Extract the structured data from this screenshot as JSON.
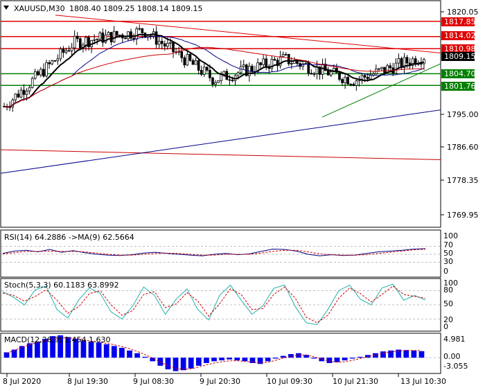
{
  "header": {
    "symbol_tf": "XAUUSD,M30",
    "ohlc": "1808.40 1809.25 1808.14 1809.15"
  },
  "price_axis": {
    "ticks": [
      "1820.05",
      "1795.00",
      "1786.60",
      "1778.35",
      "1769.95"
    ],
    "last_price_label": "1809.15",
    "level_labels": [
      {
        "value": "1817.85",
        "color": "#e00000"
      },
      {
        "value": "1814.02",
        "color": "#e00000"
      },
      {
        "value": "1810.98",
        "color": "#e00000"
      },
      {
        "value": "1804.70",
        "color": "#008000"
      },
      {
        "value": "1801.76",
        "color": "#008000"
      }
    ]
  },
  "rsi": {
    "label": "RSI(14) 64.2886  ->MA(9) 62.5664",
    "ticks": [
      "100",
      "70",
      "50",
      "30",
      "0"
    ]
  },
  "stoch": {
    "label": "Stoch(5,3,3) 60.1183 63.8992",
    "ticks": [
      "100",
      "80",
      "50",
      "20",
      "0"
    ]
  },
  "macd": {
    "label": "MACD(12,26,9) 1.454 1.630",
    "ticks": [
      "4.981",
      "0.00",
      "-3.055"
    ]
  },
  "time_axis": {
    "labels": [
      "8 Jul 2020",
      "8 Jul 19:30",
      "9 Jul 08:30",
      "9 Jul 20:30",
      "10 Jul 09:30",
      "10 Jul 21:30",
      "13 Jul 10:30"
    ]
  },
  "colors": {
    "bull": "#000000",
    "bear": "#000000",
    "resistance": "#e00000",
    "support": "#008000",
    "ma_fast": "#000000",
    "ma_mid": "#00008b",
    "ma_slow": "#cc0000",
    "rsi_line": "#000080",
    "rsi_ma": "#cc0000",
    "stoch_main": "#20b2aa",
    "stoch_signal": "#cc0000",
    "macd_hist": "#0000ee",
    "macd_signal": "#cc0000"
  },
  "chart_data": [
    {
      "type": "candlestick",
      "title": "XAUUSD,M30",
      "ylim": [
        1766.5,
        1822.5
      ],
      "x": [
        "8 Jul 2020",
        "8 Jul 19:30",
        "9 Jul 08:30",
        "9 Jul 20:30",
        "10 Jul 09:30",
        "10 Jul 21:30",
        "13 Jul 10:30"
      ],
      "last": {
        "open": 1808.4,
        "high": 1809.25,
        "low": 1808.14,
        "close": 1809.15
      },
      "close_path": [
        {
          "x": "8 Jul 2020",
          "y": 1796.5
        },
        {
          "x": "8 Jul 19:30",
          "y": 1812.5
        },
        {
          "x": "9 Jul 08:30",
          "y": 1815.5
        },
        {
          "x": "9 Jul 20:30",
          "y": 1803.2
        },
        {
          "x": "10 Jul 09:30",
          "y": 1808.4
        },
        {
          "x": "10 Jul 21:30",
          "y": 1803.0
        },
        {
          "x": "13 Jul 10:30",
          "y": 1809.15
        }
      ],
      "horizontal_levels": [
        1817.85,
        1814.02,
        1810.98,
        1804.7,
        1801.76
      ]
    },
    {
      "type": "line",
      "title": "RSI(14) 64.2886  ->MA(9) 62.5664",
      "ylim": [
        0,
        100
      ],
      "series": [
        {
          "values": [
            52,
            58,
            60,
            56,
            62,
            55,
            59,
            54,
            50,
            48,
            47,
            49,
            53,
            55,
            52,
            50,
            48,
            46,
            50,
            52,
            49,
            51,
            57,
            63,
            62,
            58,
            50,
            46,
            49,
            47,
            48,
            52,
            56,
            58,
            60,
            63,
            64
          ]
        },
        {
          "values": [
            51,
            54,
            57,
            57,
            58,
            57,
            57,
            56,
            53,
            50,
            48,
            48,
            50,
            52,
            53,
            52,
            50,
            48,
            48,
            50,
            50,
            50,
            53,
            57,
            60,
            60,
            56,
            51,
            49,
            48,
            48,
            49,
            52,
            55,
            58,
            61,
            62.6
          ]
        }
      ]
    },
    {
      "type": "line",
      "title": "Stoch(5,3,3) 60.1183 63.8992",
      "ylim": [
        0,
        100
      ],
      "series": [
        {
          "values": [
            78,
            66,
            50,
            82,
            90,
            40,
            22,
            60,
            86,
            74,
            35,
            20,
            48,
            88,
            70,
            30,
            62,
            84,
            40,
            18,
            70,
            92,
            60,
            30,
            48,
            85,
            92,
            46,
            12,
            8,
            40,
            80,
            92,
            62,
            50,
            86,
            94,
            60,
            70,
            60
          ]
        },
        {
          "values": [
            75,
            70,
            58,
            68,
            82,
            60,
            32,
            46,
            74,
            80,
            50,
            28,
            38,
            72,
            78,
            44,
            52,
            76,
            58,
            26,
            52,
            84,
            72,
            40,
            42,
            72,
            88,
            64,
            24,
            12,
            28,
            64,
            86,
            74,
            56,
            72,
            90,
            72,
            68,
            64
          ]
        }
      ]
    },
    {
      "type": "bar",
      "title": "MACD(12,26,9) 1.454 1.630",
      "ylim": [
        -3.055,
        4.981
      ],
      "values": [
        1.2,
        1.8,
        2.6,
        3.2,
        3.6,
        4.2,
        4.8,
        4.98,
        4.6,
        4.2,
        3.8,
        3.6,
        3.4,
        3.0,
        2.6,
        2.2,
        1.6,
        1.0,
        0.2,
        -0.8,
        -1.8,
        -2.6,
        -3.0,
        -2.8,
        -2.4,
        -1.8,
        -1.2,
        -0.8,
        -0.6,
        -0.4,
        -0.6,
        -0.8,
        -1.2,
        -1.4,
        -0.8,
        -0.2,
        0.4,
        0.8,
        1.0,
        0.6,
        -0.2,
        -0.8,
        -1.2,
        -1.0,
        -0.6,
        -0.2,
        0.2,
        0.6,
        1.0,
        1.4,
        1.6,
        1.8,
        1.7,
        1.6,
        1.45
      ],
      "signal": [
        1.0,
        1.6,
        2.3,
        2.9,
        3.4,
        3.8,
        4.2,
        4.4,
        4.4,
        4.3,
        4.0,
        3.7,
        3.5,
        3.2,
        2.9,
        2.5,
        2.0,
        1.4,
        0.7,
        -0.1,
        -1.0,
        -1.8,
        -2.4,
        -2.6,
        -2.5,
        -2.1,
        -1.6,
        -1.2,
        -0.9,
        -0.7,
        -0.7,
        -0.8,
        -1.0,
        -1.2,
        -1.0,
        -0.6,
        -0.1,
        0.3,
        0.6,
        0.6,
        0.2,
        -0.3,
        -0.8,
        -1.0,
        -0.9,
        -0.6,
        -0.2,
        0.2,
        0.6,
        1.0,
        1.3,
        1.5,
        1.6,
        1.6,
        1.63
      ]
    }
  ]
}
